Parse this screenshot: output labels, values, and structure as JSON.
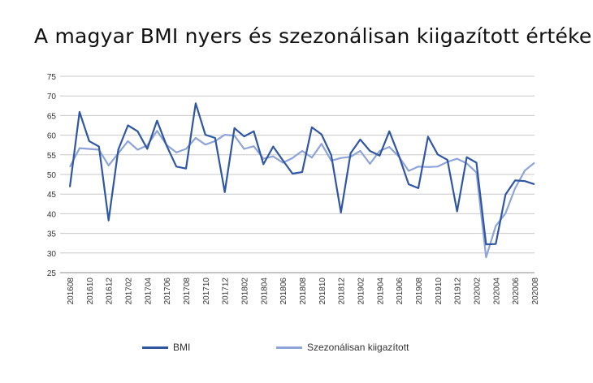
{
  "title": "A magyar BMI nyers és szezonálisan kiigazított értéke",
  "chart_data": {
    "type": "line",
    "title": "A magyar BMI nyers és szezonálisan kiigazított értéke",
    "xlabel": "",
    "ylabel": "",
    "ylim": [
      25,
      75
    ],
    "yticks": [
      25,
      30,
      35,
      40,
      45,
      50,
      55,
      60,
      65,
      70,
      75
    ],
    "grid": true,
    "legend": "bottom",
    "x": [
      "201608",
      "201609",
      "201610",
      "201611",
      "201612",
      "201701",
      "201702",
      "201703",
      "201704",
      "201705",
      "201706",
      "201707",
      "201708",
      "201709",
      "201710",
      "201711",
      "201712",
      "201801",
      "201802",
      "201803",
      "201804",
      "201805",
      "201806",
      "201807",
      "201808",
      "201809",
      "201810",
      "201811",
      "201812",
      "201901",
      "201902",
      "201903",
      "201904",
      "201905",
      "201906",
      "201907",
      "201908",
      "201909",
      "201910",
      "201911",
      "201912",
      "202001",
      "202002",
      "202003",
      "202004",
      "202005",
      "202006",
      "202007",
      "202008"
    ],
    "xtick_labels": [
      "201608",
      "201610",
      "201612",
      "201702",
      "201704",
      "201706",
      "201708",
      "201710",
      "201712",
      "201802",
      "201804",
      "201806",
      "201808",
      "201810",
      "201812",
      "201902",
      "201904",
      "201906",
      "201908",
      "201910",
      "201912",
      "202002",
      "202004",
      "202006",
      "202008"
    ],
    "series": [
      {
        "name": "BMI",
        "color": "#2e56a3",
        "values": [
          46.8,
          65.9,
          58.5,
          57.1,
          38.3,
          56.3,
          62.5,
          61.0,
          56.5,
          63.7,
          57.3,
          52.0,
          51.5,
          68.1,
          60.1,
          59.3,
          45.5,
          61.8,
          59.7,
          61.0,
          52.6,
          57.1,
          53.6,
          50.2,
          50.6,
          62.0,
          60.2,
          54.9,
          40.3,
          55.4,
          58.9,
          56.0,
          54.8,
          61.0,
          54.7,
          47.5,
          46.5,
          59.6,
          55.1,
          53.7,
          40.6,
          54.4,
          53.0,
          32.2,
          32.3,
          44.9,
          48.5,
          48.3,
          47.5
        ]
      },
      {
        "name": "Szezonálisan kiigazított",
        "color": "#8ea4d8",
        "values": [
          51.9,
          56.7,
          56.5,
          56.3,
          52.3,
          55.4,
          58.5,
          56.3,
          57.4,
          61.1,
          57.5,
          55.6,
          56.5,
          59.3,
          57.6,
          58.5,
          60.1,
          59.9,
          56.5,
          57.2,
          54.0,
          54.6,
          53.0,
          54.2,
          56.0,
          54.3,
          57.8,
          53.5,
          54.2,
          54.5,
          56.0,
          52.7,
          56.0,
          57.0,
          54.5,
          50.9,
          52.0,
          51.9,
          52.0,
          53.2,
          54.0,
          52.8,
          50.5,
          28.9,
          36.9,
          40.1,
          46.5,
          51.0,
          53.0
        ]
      }
    ]
  }
}
